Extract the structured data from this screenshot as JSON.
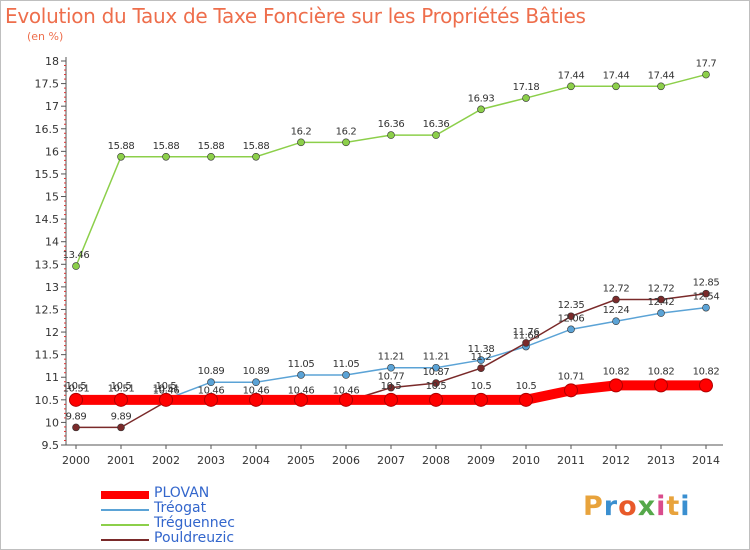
{
  "header": {
    "title": "Evolution du Taux de Taxe Foncière sur les Propriétés Bâties",
    "subtitle": "(en %)"
  },
  "logo": {
    "text": "Proxiti",
    "colors": [
      "#e8a33c",
      "#3a8fd0",
      "#e85a2a",
      "#55a84a",
      "#d94c8c",
      "#e8a33c",
      "#3a8fd0"
    ]
  },
  "chart_data": {
    "type": "line",
    "title": "Evolution du Taux de Taxe Foncière sur les Propriétés Bâties",
    "ylabel": "(en %)",
    "xlabel": "",
    "ylim": [
      9.5,
      18
    ],
    "yticks": [
      "9.5",
      "10",
      "10.5",
      "11",
      "11.5",
      "12",
      "12.5",
      "13",
      "13.5",
      "14",
      "14.5",
      "15",
      "15.5",
      "16",
      "16.5",
      "17",
      "17.5",
      "18"
    ],
    "x": [
      "2000",
      "2001",
      "2002",
      "2003",
      "2004",
      "2005",
      "2006",
      "2007",
      "2008",
      "2009",
      "2010",
      "2011",
      "2012",
      "2013",
      "2014"
    ],
    "grid": false,
    "legend": "bottom-left",
    "series": [
      {
        "name": "Tréguennec",
        "color": "#8ccf4a",
        "values": [
          13.46,
          15.88,
          15.88,
          15.88,
          15.88,
          16.2,
          16.2,
          16.36,
          16.36,
          16.93,
          17.18,
          17.44,
          17.44,
          17.44,
          17.7
        ],
        "labels": [
          "13.46",
          "15.88",
          "15.88",
          "15.88",
          "15.88",
          "16.2",
          "16.2",
          "16.36",
          "16.36",
          "16.93",
          "17.18",
          "17.44",
          "17.44",
          "17.44",
          "17.7"
        ]
      },
      {
        "name": "Tréogat",
        "color": "#5ba3d6",
        "values": [
          10.51,
          10.51,
          10.51,
          10.89,
          10.89,
          11.05,
          11.05,
          11.21,
          11.21,
          11.38,
          11.68,
          12.06,
          12.24,
          12.42,
          12.54
        ],
        "labels": [
          "10.51",
          "10.51",
          "10.51",
          "10.89",
          "10.89",
          "11.05",
          "11.05",
          "11.21",
          "11.21",
          "11.38",
          "11.68",
          "12.06",
          "12.24",
          "12.42",
          "12.54"
        ]
      },
      {
        "name": "Pouldreuzic",
        "color": "#7a2a2a",
        "values": [
          9.89,
          9.89,
          10.46,
          10.46,
          10.46,
          10.46,
          10.46,
          10.77,
          10.87,
          11.2,
          11.76,
          12.35,
          12.72,
          12.72,
          12.85
        ],
        "labels": [
          "9.89",
          "9.89",
          "10.46",
          "10.46",
          "10.46",
          "10.46",
          "10.46",
          "10.77",
          "10.87",
          "11.2",
          "11.76",
          "12.35",
          "12.72",
          "12.72",
          "12.85"
        ]
      },
      {
        "name": "PLOVAN",
        "color": "#ff0000",
        "values": [
          10.5,
          10.5,
          10.5,
          10.5,
          10.5,
          10.5,
          10.5,
          10.5,
          10.5,
          10.5,
          10.5,
          10.71,
          10.82,
          10.82,
          10.82
        ],
        "labels": [
          "10.5",
          "10.5",
          "10.5",
          "",
          "",
          "",
          "",
          "10.5",
          "10.5",
          "10.5",
          "10.5",
          "10.71",
          "10.82",
          "10.82",
          "10.82"
        ]
      }
    ],
    "legend_order": [
      "PLOVAN",
      "Tréogat",
      "Tréguennec",
      "Pouldreuzic"
    ]
  }
}
